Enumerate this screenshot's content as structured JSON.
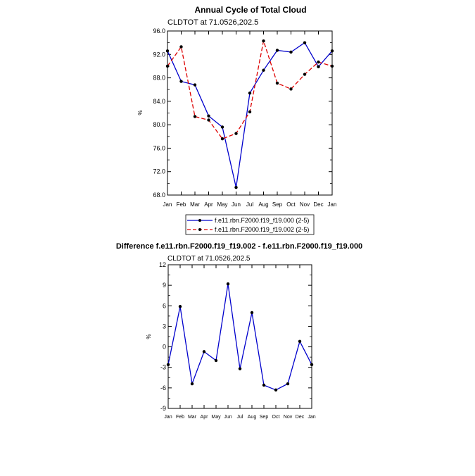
{
  "chart_data": [
    {
      "type": "line",
      "title": "Annual Cycle of Total Cloud",
      "subtitle": "CLDTOT at 71.0526,202.5",
      "xlabel": "",
      "ylabel": "%",
      "categories": [
        "Jan",
        "Feb",
        "Mar",
        "Apr",
        "May",
        "Jun",
        "Jul",
        "Aug",
        "Sep",
        "Oct",
        "Nov",
        "Dec",
        "Jan"
      ],
      "ylim": [
        68.0,
        96.0
      ],
      "yticks": [
        "68.0",
        "72.0",
        "76.0",
        "80.0",
        "84.0",
        "88.0",
        "92.0",
        "96.0"
      ],
      "ytick_values": [
        68,
        72,
        76,
        80,
        84,
        88,
        92,
        96
      ],
      "series": [
        {
          "name": "f.e11.rbn.F2000.f19_f19.000 (2-5)",
          "color": "#0000cc",
          "dash": "solid",
          "values": [
            92.6,
            87.4,
            86.8,
            81.5,
            79.6,
            69.3,
            85.4,
            89.3,
            92.7,
            92.4,
            94.0,
            89.9,
            92.6
          ]
        },
        {
          "name": "f.e11.rbn.F2000.f19_f19.002 (2-5)",
          "color": "#dd0000",
          "dash": "dashed",
          "values": [
            90.0,
            93.3,
            81.4,
            80.8,
            77.6,
            78.5,
            82.2,
            94.3,
            87.1,
            86.1,
            88.6,
            90.7,
            90.0
          ]
        }
      ]
    },
    {
      "type": "line",
      "title": "Difference f.e11.rbn.F2000.f19_f19.002 - f.e11.rbn.F2000.f19_f19.000",
      "subtitle": "CLDTOT at 71.0526,202.5",
      "xlabel": "",
      "ylabel": "%",
      "categories": [
        "Jan",
        "Feb",
        "Mar",
        "Apr",
        "May",
        "Jun",
        "Jul",
        "Aug",
        "Sep",
        "Oct",
        "Nov",
        "Dec",
        "Jan"
      ],
      "ylim": [
        -9,
        12
      ],
      "yticks": [
        "-9",
        "-6",
        "-3",
        "0",
        "3",
        "6",
        "9",
        "12"
      ],
      "ytick_values": [
        -9,
        -6,
        -3,
        0,
        3,
        6,
        9,
        12
      ],
      "series": [
        {
          "name": "difference",
          "color": "#0000cc",
          "dash": "solid",
          "values": [
            -2.6,
            5.9,
            -5.4,
            -0.7,
            -2.0,
            9.2,
            -3.2,
            5.0,
            -5.6,
            -6.3,
            -5.4,
            0.8,
            -2.6
          ]
        }
      ]
    }
  ]
}
